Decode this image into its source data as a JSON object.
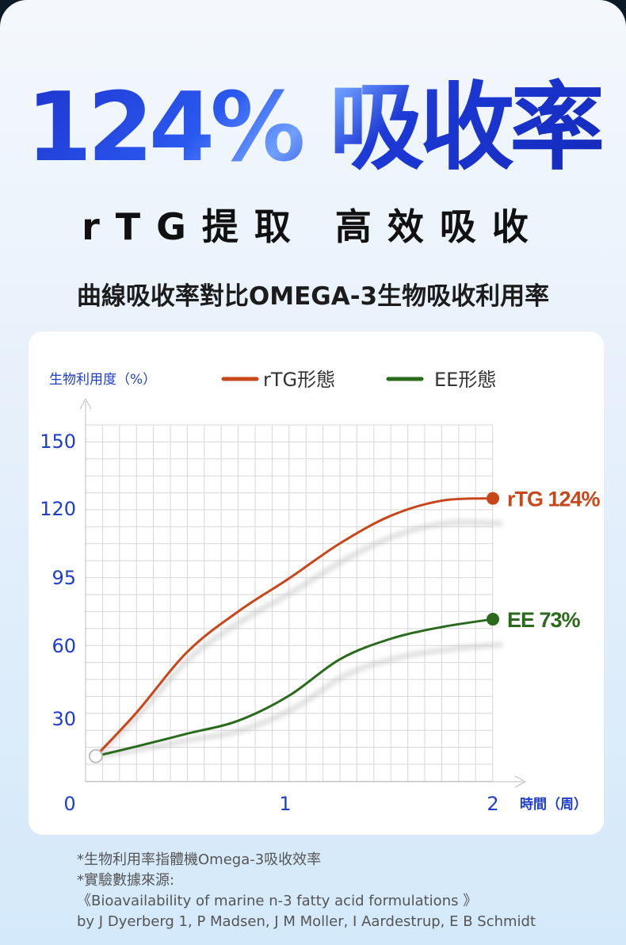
{
  "headline": "124% 吸收率",
  "subtitle": "rTG提取 高效吸收",
  "caption": "曲線吸收率對比OMEGA-3生物吸收利用率",
  "chart_data": {
    "type": "line",
    "ylabel": "生物利用度（%）",
    "xlabel": "時間（周）",
    "y_ticks": [
      "150",
      "120",
      "95",
      "60",
      "30"
    ],
    "x_ticks": [
      "0",
      "1",
      "2"
    ],
    "legend_position": "top",
    "grid": true,
    "series": [
      {
        "name": "rTG形態",
        "color": "#c8471a",
        "end_label": "rTG 124%",
        "x": [
          0.05,
          0.25,
          0.5,
          0.75,
          1.0,
          1.25,
          1.5,
          1.75,
          2.0
        ],
        "y": [
          6,
          32,
          57,
          77,
          94,
          107,
          117,
          123,
          124
        ]
      },
      {
        "name": "EE形態",
        "color": "#2a6a1d",
        "end_label": "EE 73%",
        "x": [
          0.05,
          0.25,
          0.5,
          0.75,
          1.0,
          1.25,
          1.5,
          1.75,
          2.0
        ],
        "y": [
          6,
          12,
          20,
          28,
          39,
          54,
          63,
          69,
          73
        ]
      }
    ]
  },
  "notes": {
    "line1": "*生物利用率指體機Omega-3吸收效率",
    "line2": "*實驗數據來源:",
    "line3": "《Bioavailability of marine n-3 fatty acid formulations 》",
    "line4": "by J Dyerberg 1, P Madsen, J M Moller, I Aardestrup, E B Schmidt"
  }
}
